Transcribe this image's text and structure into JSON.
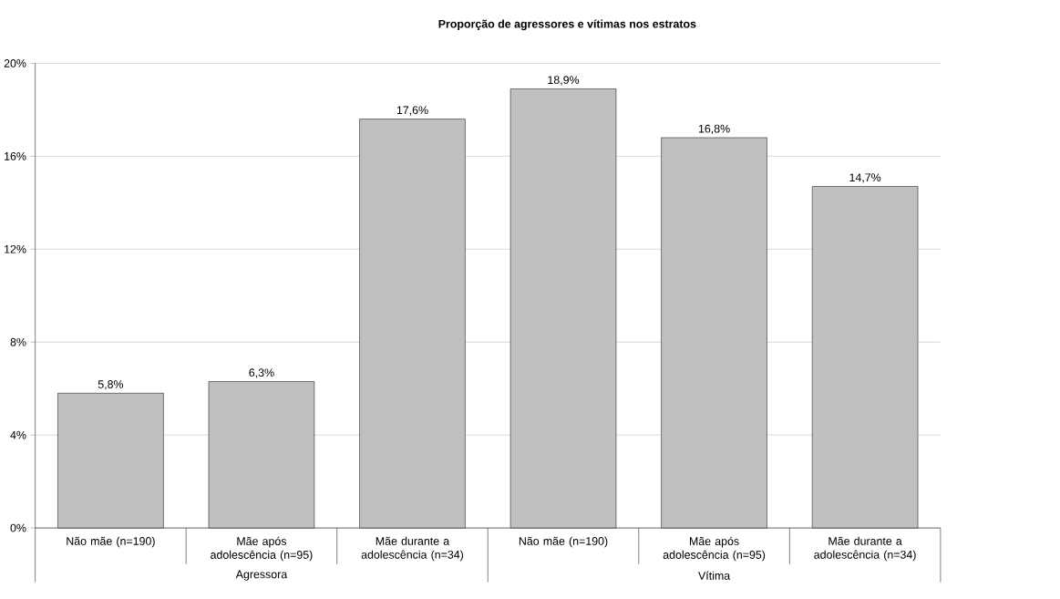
{
  "chart_data": {
    "type": "bar",
    "title": "Proporção de agressores e vítimas nos estratos",
    "categories": [
      "Não mãe (n=190)",
      "Mãe após adolescência (n=95)",
      "Mãe durante a adolescência (n=34)",
      "Não mãe (n=190)",
      "Mãe após adolescência (n=95)",
      "Mãe durante a adolescência (n=34)"
    ],
    "values": [
      5.8,
      6.3,
      17.6,
      18.9,
      16.8,
      14.7
    ],
    "value_labels": [
      "5,8%",
      "6,3%",
      "17,6%",
      "18,9%",
      "16,8%",
      "14,7%"
    ],
    "color": "#c0c0c0",
    "ylim": [
      0,
      20
    ],
    "yticks": [
      {
        "value": 0,
        "label": "0%"
      },
      {
        "value": 4,
        "label": "4%"
      },
      {
        "value": 8,
        "label": "8%"
      },
      {
        "value": 12,
        "label": "12%"
      },
      {
        "value": 16,
        "label": "16%"
      },
      {
        "value": 20,
        "label": "20%"
      }
    ],
    "grid": "y",
    "annotations": [
      "Agressora",
      "Vítima"
    ]
  }
}
